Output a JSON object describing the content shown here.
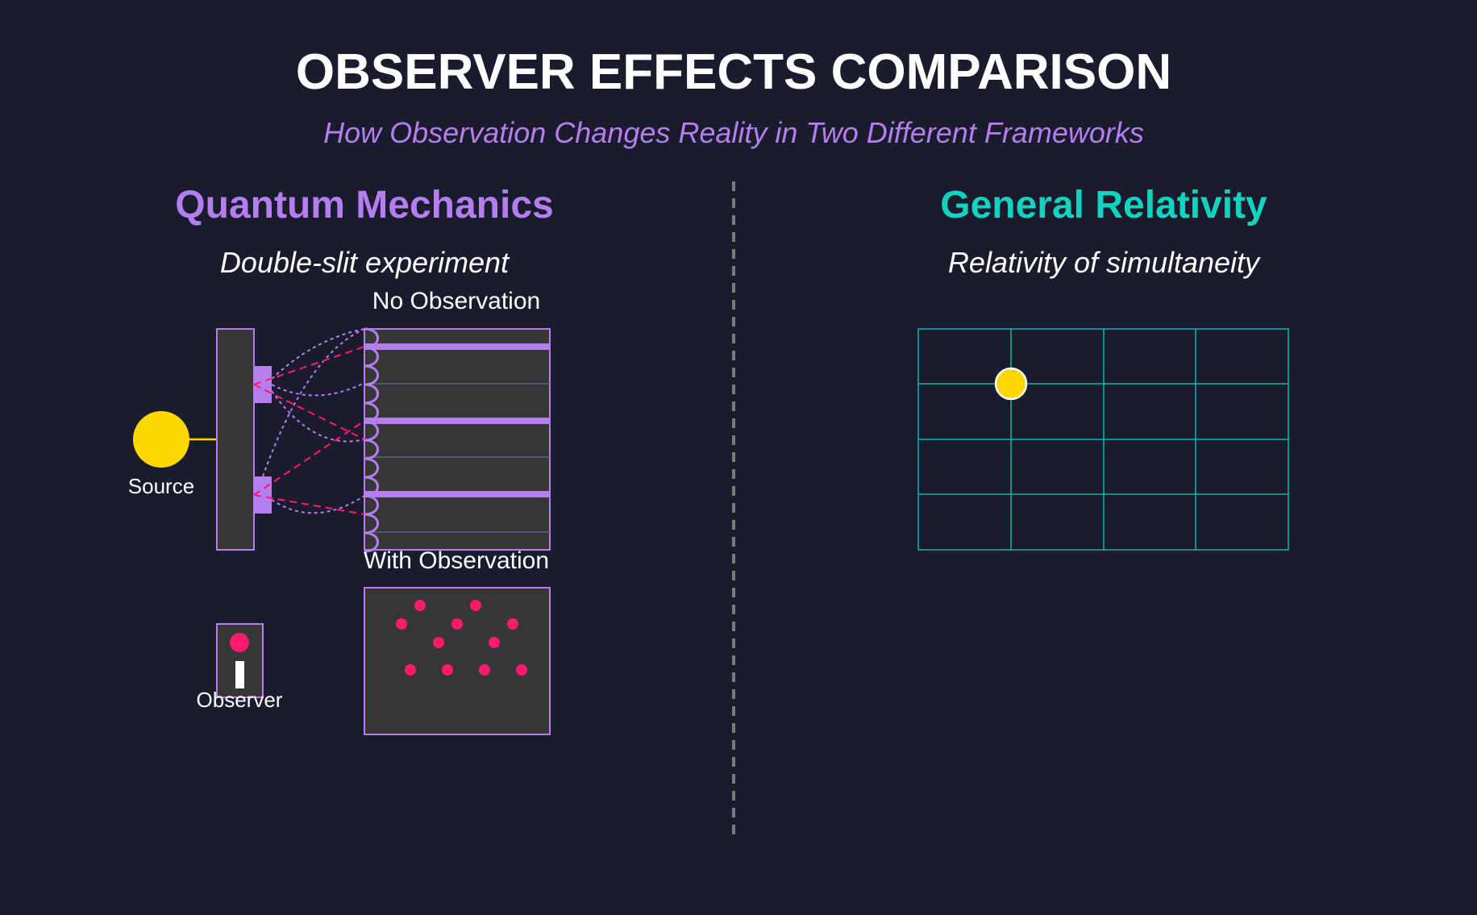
{
  "title": "OBSERVER EFFECTS COMPARISON",
  "subtitle": "How Observation Changes Reality in Two Different Frameworks",
  "quantum": {
    "heading": "Quantum Mechanics",
    "subheading": "Double-slit experiment",
    "source_label": "Source",
    "no_observation_label": "No Observation",
    "with_observation_label": "With Observation",
    "observer_label": "Observer"
  },
  "relativity": {
    "heading": "General Relativity",
    "subheading": "Relativity of simultaneity"
  },
  "colors": {
    "background": "#1b1b2e",
    "quantum_accent": "#b57ef0",
    "relativity_accent": "#14d2c0",
    "source": "#ffd700",
    "particle": "#ff1a6e",
    "panel": "#363636",
    "divider": "#7a7a7a"
  }
}
